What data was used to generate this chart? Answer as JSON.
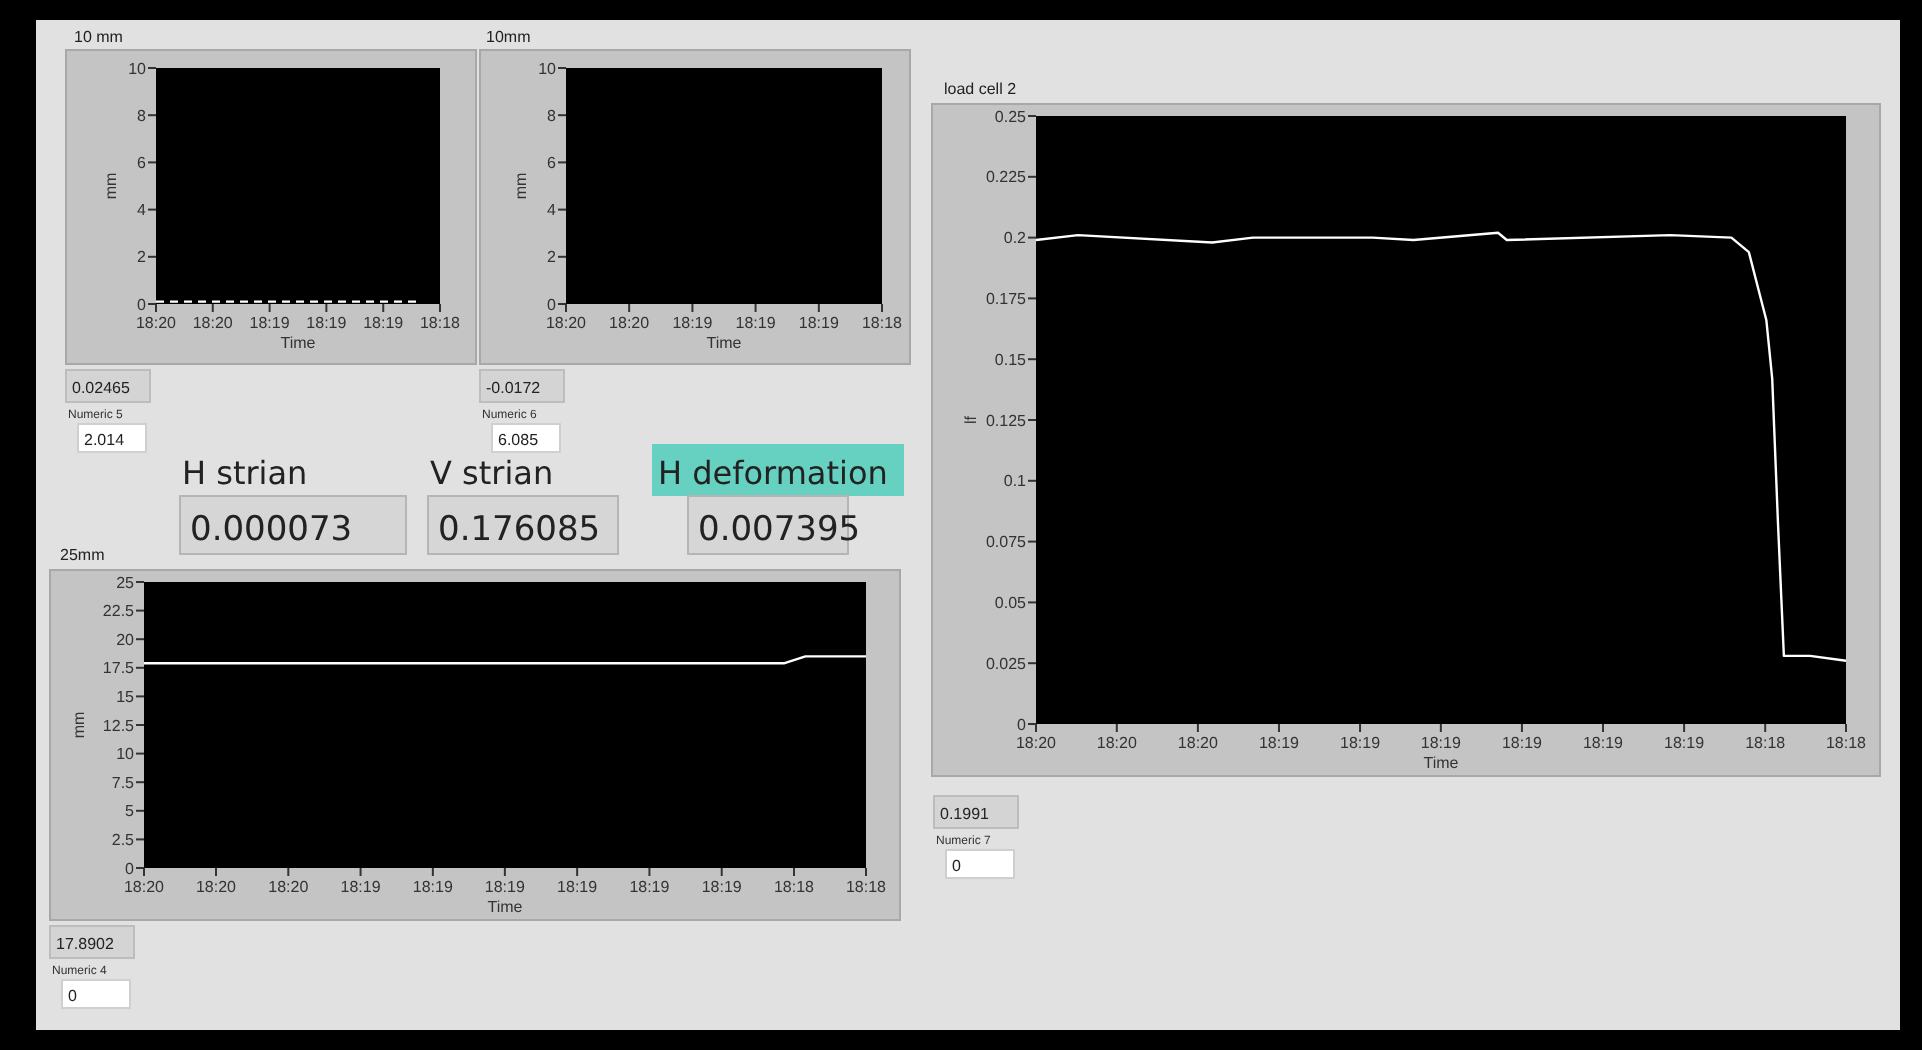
{
  "chart_data": [
    {
      "type": "line",
      "title": "10 mm",
      "xlabel": "Time",
      "ylabel": "mm",
      "xlim": [
        18.33194,
        18.30417
      ],
      "ylim": [
        0,
        10
      ],
      "yticks": [
        0,
        2,
        4,
        6,
        8,
        10
      ],
      "xticks": [
        {
          "value": 18.33194,
          "label": "18:20"
        },
        {
          "value": 18.32639,
          "label": "18:20"
        },
        {
          "value": 18.32083,
          "label": "18:19"
        },
        {
          "value": 18.31528,
          "label": "18:19"
        },
        {
          "value": 18.30972,
          "label": "18:19"
        },
        {
          "value": 18.30417,
          "label": "18:18"
        }
      ],
      "line_style": "dashed",
      "series": [
        {
          "color": "#ffffff",
          "x": [
            18.33194,
            18.3064
          ],
          "values": [
            0.1,
            0.1
          ]
        }
      ],
      "annotations": [
        "0.02465",
        "Numeric 5",
        "2.014"
      ]
    },
    {
      "type": "line",
      "title": "10mm",
      "xlabel": "Time",
      "ylabel": "mm",
      "xlim": [
        18.33194,
        18.30417
      ],
      "ylim": [
        0,
        10
      ],
      "yticks": [
        0,
        2,
        4,
        6,
        8,
        10
      ],
      "xticks": [
        {
          "value": 18.33194,
          "label": "18:20"
        },
        {
          "value": 18.32639,
          "label": "18:20"
        },
        {
          "value": 18.32083,
          "label": "18:19"
        },
        {
          "value": 18.31528,
          "label": "18:19"
        },
        {
          "value": 18.30972,
          "label": "18:19"
        },
        {
          "value": 18.30417,
          "label": "18:18"
        }
      ],
      "annotations": [
        "-0.0172",
        "Numeric 6",
        "6.085"
      ]
    },
    {
      "type": "other",
      "annotations": [
        "H strian",
        "0.000073",
        "V strian",
        "0.176085",
        "H deformation",
        "0.007395"
      ]
    },
    {
      "type": "line",
      "title": "25mm",
      "xlabel": "Time",
      "ylabel": "mm",
      "xlim": [
        18.33194,
        18.30417
      ],
      "ylim": [
        0,
        25
      ],
      "yticks": [
        0,
        2.5,
        5,
        7.5,
        10,
        12.5,
        15,
        17.5,
        20,
        22.5,
        25
      ],
      "xticks": [
        {
          "value": 18.33194,
          "label": "18:20"
        },
        {
          "value": 18.32917,
          "label": "18:20"
        },
        {
          "value": 18.32639,
          "label": "18:20"
        },
        {
          "value": 18.32361,
          "label": "18:19"
        },
        {
          "value": 18.32083,
          "label": "18:19"
        },
        {
          "value": 18.31806,
          "label": "18:19"
        },
        {
          "value": 18.31528,
          "label": "18:19"
        },
        {
          "value": 18.3125,
          "label": "18:19"
        },
        {
          "value": 18.30972,
          "label": "18:19"
        },
        {
          "value": 18.30694,
          "label": "18:18"
        },
        {
          "value": 18.30417,
          "label": "18:18"
        }
      ],
      "series": [
        {
          "color": "#ffffff",
          "x": [
            18.33194,
            18.3073,
            18.3065,
            18.30417
          ],
          "values": [
            17.9,
            17.9,
            18.5,
            18.5
          ]
        }
      ],
      "annotations": [
        "17.8902",
        "Numeric 4",
        "0"
      ]
    },
    {
      "type": "line",
      "title": "load cell 2",
      "xlabel": "Time",
      "ylabel": "lf",
      "xlim": [
        18.33194,
        18.30417
      ],
      "ylim": [
        0,
        0.25
      ],
      "yticks": [
        0,
        0.025,
        0.05,
        0.075,
        0.1,
        0.125,
        0.15,
        0.175,
        0.2,
        0.225,
        0.25
      ],
      "xticks": [
        {
          "value": 18.33194,
          "label": "18:20"
        },
        {
          "value": 18.32917,
          "label": "18:20"
        },
        {
          "value": 18.32639,
          "label": "18:20"
        },
        {
          "value": 18.32361,
          "label": "18:19"
        },
        {
          "value": 18.32083,
          "label": "18:19"
        },
        {
          "value": 18.31806,
          "label": "18:19"
        },
        {
          "value": 18.31528,
          "label": "18:19"
        },
        {
          "value": 18.3125,
          "label": "18:19"
        },
        {
          "value": 18.30972,
          "label": "18:19"
        },
        {
          "value": 18.30694,
          "label": "18:18"
        },
        {
          "value": 18.30417,
          "label": "18:18"
        }
      ],
      "series": [
        {
          "color": "#ffffff",
          "x": [
            18.33194,
            18.3305,
            18.3259,
            18.3245,
            18.3204,
            18.319,
            18.3161,
            18.3158,
            18.3102,
            18.3081,
            18.3075,
            18.3072,
            18.3069,
            18.3067,
            18.3065,
            18.3063,
            18.3054,
            18.30417
          ],
          "values": [
            0.199,
            0.201,
            0.198,
            0.2,
            0.2,
            0.199,
            0.202,
            0.199,
            0.201,
            0.2,
            0.194,
            0.18,
            0.166,
            0.142,
            0.082,
            0.028,
            0.028,
            0.026
          ]
        }
      ],
      "annotations": [
        "0.1991",
        "Numeric 7",
        "0"
      ]
    }
  ]
}
